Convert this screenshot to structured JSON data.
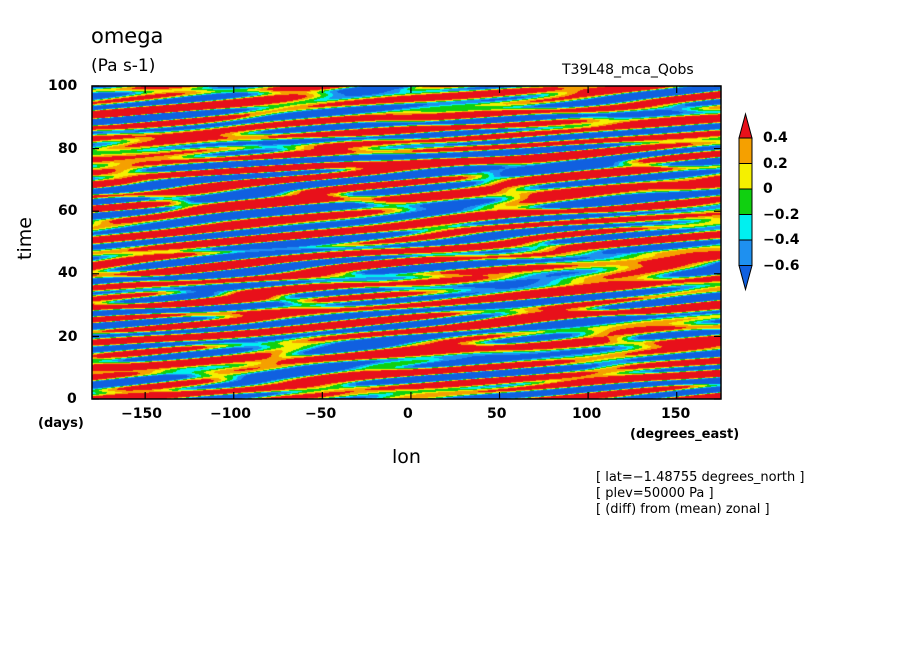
{
  "chart_data": {
    "type": "heatmap",
    "title": "omega",
    "units": "(Pa s-1)",
    "experiment": "T39L48_mca_Qobs",
    "xlabel": "lon",
    "ylabel": "time",
    "x_unit_label": "(degrees_east)",
    "y_unit_label": "(days)",
    "xlim": [
      -180,
      175
    ],
    "ylim": [
      0,
      100
    ],
    "x_ticks": [
      -150,
      -100,
      -50,
      0,
      50,
      100,
      150
    ],
    "y_ticks": [
      0,
      20,
      40,
      60,
      80,
      100
    ],
    "x_tick_labels": [
      "−150",
      "−100",
      "−50",
      "0",
      "50",
      "100",
      "150"
    ],
    "y_tick_labels": [
      "0",
      "20",
      "40",
      "60",
      "80",
      "100"
    ],
    "colorbar": {
      "levels": [
        0.4,
        0.2,
        0,
        -0.2,
        -0.4,
        -0.6
      ],
      "level_labels": [
        "0.4",
        "0.2",
        "0",
        "−0.2",
        "−0.4",
        "−0.6"
      ],
      "colors": [
        "#e8101a",
        "#f5a000",
        "#f5f000",
        "#10d010",
        "#00f0f0",
        "#1e90f0",
        "#1060e0"
      ]
    },
    "notes": [
      "[ lat=−1.48755 degrees_north ]",
      "[ plev=50000 Pa ]",
      "[ (diff) from (mean) zonal ]"
    ]
  }
}
